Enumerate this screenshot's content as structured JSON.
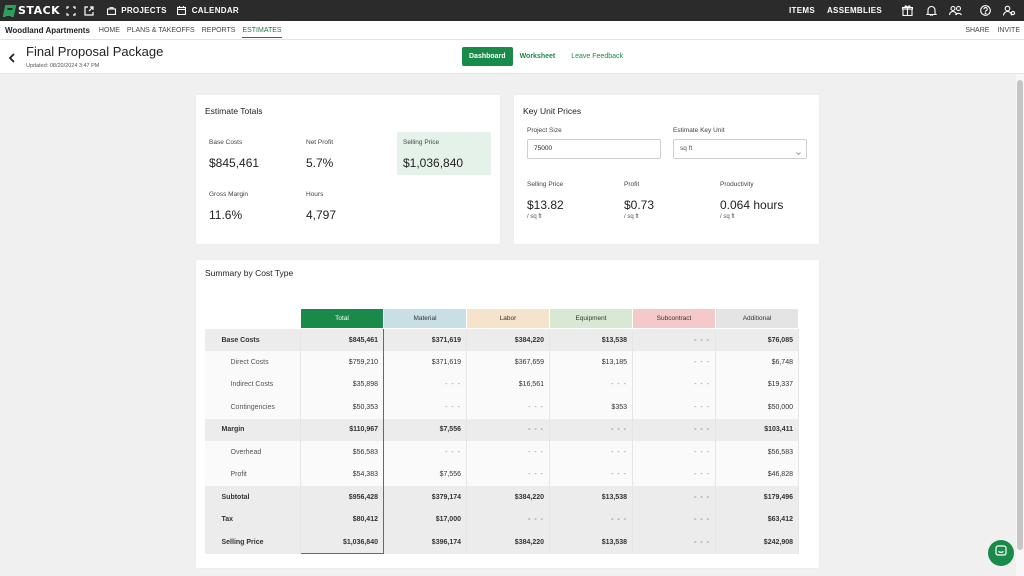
{
  "topbar": {
    "logo": "STACK",
    "projects_label": "PROJECTS",
    "calendar_label": "CALENDAR",
    "items_label": "ITEMS",
    "assemblies_label": "ASSEMBLIES",
    "bg_color": "#2b2b2b",
    "brand_color": "#2e9e5b"
  },
  "nav": {
    "project_name": "Woodland Apartments",
    "items": [
      "HOME",
      "PLANS & TAKEOFFS",
      "REPORTS",
      "ESTIMATES"
    ],
    "active": "ESTIMATES",
    "share": "SHARE",
    "invite": "INVITE"
  },
  "header": {
    "title": "Final Proposal Package",
    "updated": "Updated: 08/20/2024 3:47 PM",
    "tabs": [
      "Dashboard",
      "Worksheet"
    ],
    "active_tab": "Dashboard",
    "feedback": "Leave Feedback",
    "accent": "#1a8a4a"
  },
  "estimate_totals": {
    "title": "Estimate Totals",
    "base_costs_label": "Base Costs",
    "base_costs": "$845,461",
    "net_profit_label": "Net Profit",
    "net_profit": "5.7%",
    "selling_price_label": "Selling Price",
    "selling_price": "$1,036,840",
    "gross_margin_label": "Gross Margin",
    "gross_margin": "11.6%",
    "hours_label": "Hours",
    "hours": "4,797"
  },
  "key_unit_prices": {
    "title": "Key Unit Prices",
    "project_size_label": "Project Size",
    "project_size": "75000",
    "key_unit_label": "Estimate Key Unit",
    "key_unit": "sq ft",
    "selling_price_label": "Selling Price",
    "selling_price": "$13.82",
    "selling_price_unit": "/ sq ft",
    "profit_label": "Profit",
    "profit": "$0.73",
    "profit_unit": "/ sq ft",
    "productivity_label": "Productivity",
    "productivity": "0.064 hours",
    "productivity_unit": "/ sq ft"
  },
  "summary": {
    "title": "Summary by Cost Type",
    "columns": [
      {
        "label": "Total",
        "bg": "#1a8a4a",
        "fg": "#ffffff"
      },
      {
        "label": "Material",
        "bg": "#c9dfe6",
        "fg": "#333333"
      },
      {
        "label": "Labor",
        "bg": "#f6e3cb",
        "fg": "#333333"
      },
      {
        "label": "Equipment",
        "bg": "#d9e8d2",
        "fg": "#333333"
      },
      {
        "label": "Subcontract",
        "bg": "#f5c9c9",
        "fg": "#333333"
      },
      {
        "label": "Additional",
        "bg": "#e4e4e4",
        "fg": "#333333"
      }
    ],
    "rows": [
      {
        "label": "Base Costs",
        "kind": "group",
        "values": [
          "$845,461",
          "$371,619",
          "$384,220",
          "$13,538",
          "- - -",
          "$76,085"
        ]
      },
      {
        "label": "Direct Costs",
        "kind": "sub",
        "values": [
          "$759,210",
          "$371,619",
          "$367,659",
          "$13,185",
          "- - -",
          "$6,748"
        ]
      },
      {
        "label": "Indirect Costs",
        "kind": "sub",
        "values": [
          "$35,898",
          "- - -",
          "$16,561",
          "- - -",
          "- - -",
          "$19,337"
        ]
      },
      {
        "label": "Contingencies",
        "kind": "sub",
        "values": [
          "$50,353",
          "- - -",
          "- - -",
          "$353",
          "- - -",
          "$50,000"
        ]
      },
      {
        "label": "Margin",
        "kind": "group",
        "values": [
          "$110,967",
          "$7,556",
          "- - -",
          "- - -",
          "- - -",
          "$103,411"
        ]
      },
      {
        "label": "Overhead",
        "kind": "sub",
        "values": [
          "$56,583",
          "- - -",
          "- - -",
          "- - -",
          "- - -",
          "$56,583"
        ]
      },
      {
        "label": "Profit",
        "kind": "sub",
        "values": [
          "$54,383",
          "$7,556",
          "- - -",
          "- - -",
          "- - -",
          "$46,828"
        ]
      },
      {
        "label": "Subtotal",
        "kind": "group",
        "values": [
          "$956,428",
          "$379,174",
          "$384,220",
          "$13,538",
          "- - -",
          "$179,496"
        ]
      },
      {
        "label": "Tax",
        "kind": "group",
        "values": [
          "$80,412",
          "$17,000",
          "- - -",
          "- - -",
          "- - -",
          "$63,412"
        ]
      },
      {
        "label": "Selling Price",
        "kind": "group",
        "values": [
          "$1,036,840",
          "$396,174",
          "$384,220",
          "$13,538",
          "- - -",
          "$242,908"
        ]
      }
    ]
  }
}
